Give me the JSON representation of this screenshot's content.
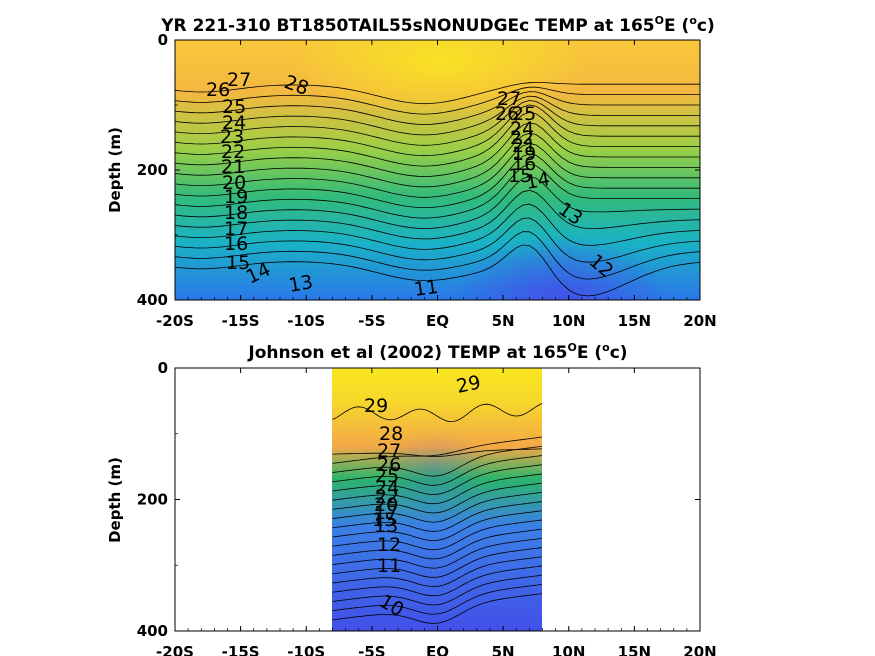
{
  "chart_data": [
    {
      "type": "contour",
      "title_main": "YR 221-310 BT1850TAIL55sNONUDGEc TEMP at 165",
      "title_sup": "O",
      "title_tail": "E (",
      "title_unit_sup": "o",
      "title_unit_tail": "c)",
      "ylabel": "Depth (m)",
      "x_ticks": [
        "-20S",
        "-15S",
        "-10S",
        "-5S",
        "EQ",
        "5N",
        "10N",
        "15N",
        "20N"
      ],
      "y_ticks": [
        "0",
        "200",
        "400"
      ],
      "xlim": [
        -20,
        20
      ],
      "ylim": [
        400,
        0
      ],
      "data_lat_range": [
        -20,
        20
      ],
      "contour_levels": [
        11,
        12,
        13,
        14,
        15,
        16,
        17,
        18,
        19,
        20,
        21,
        22,
        23,
        24,
        25,
        26,
        27,
        28
      ],
      "contour_labels": [
        "27",
        "26",
        "25",
        "24",
        "23",
        "22",
        "21",
        "20",
        "19",
        "18",
        "17",
        "16",
        "15",
        "14",
        "13",
        "28",
        "11",
        "27",
        "26",
        "25",
        "16",
        "15",
        "14",
        "13",
        "12"
      ]
    },
    {
      "type": "contour",
      "title_main": "Johnson et al (2002) TEMP at 165",
      "title_sup": "O",
      "title_tail": "E (",
      "title_unit_sup": "o",
      "title_unit_tail": "c)",
      "ylabel": "Depth (m)",
      "x_ticks": [
        "-20S",
        "-15S",
        "-10S",
        "-5S",
        "EQ",
        "5N",
        "10N",
        "15N",
        "20N"
      ],
      "y_ticks": [
        "0",
        "200",
        "400"
      ],
      "xlim": [
        -20,
        20
      ],
      "ylim": [
        400,
        0
      ],
      "data_lat_range": [
        -8,
        8
      ],
      "contour_levels": [
        10,
        11,
        12,
        13,
        14,
        15,
        16,
        17,
        18,
        19,
        20,
        21,
        22,
        23,
        24,
        25,
        26,
        27,
        28,
        29
      ],
      "contour_labels": [
        "29",
        "29",
        "28",
        "27",
        "26",
        "25",
        "24",
        "13",
        "12",
        "11",
        "10"
      ]
    }
  ],
  "colors": {
    "warm": "#f9e81f",
    "orange": "#f6b43c",
    "green": "#2cb56b",
    "teal": "#1ab6c2",
    "blue": "#3566e6",
    "deep_blue": "#4250e8"
  }
}
